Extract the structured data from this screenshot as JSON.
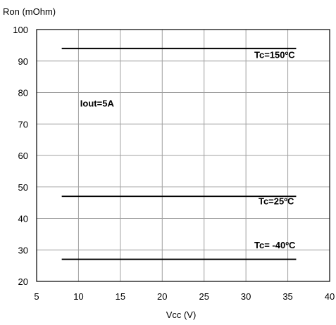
{
  "chart_data": {
    "type": "line",
    "ylabel": "Ron (mOhm)",
    "xlabel": "Vcc (V)",
    "xlim": [
      5,
      40
    ],
    "ylim": [
      20,
      100
    ],
    "x_ticks": [
      5,
      10,
      15,
      20,
      25,
      30,
      35,
      40
    ],
    "y_ticks": [
      20,
      30,
      40,
      50,
      60,
      70,
      80,
      90,
      100
    ],
    "grid": true,
    "series": [
      {
        "name": "Tc=150ºC",
        "x": [
          8,
          36
        ],
        "y": [
          94,
          94
        ]
      },
      {
        "name": "Tc=25ºC",
        "x": [
          8,
          36
        ],
        "y": [
          47,
          47
        ]
      },
      {
        "name": "Tc= -40ºC",
        "x": [
          8,
          36
        ],
        "y": [
          27,
          27
        ]
      }
    ],
    "annotations": [
      {
        "text": "Iout=5A",
        "x": 10.2,
        "y": 75.5
      },
      {
        "text": "Tc=150ºC",
        "x": 31,
        "y": 91
      },
      {
        "text": "Tc=25ºC",
        "x": 31.5,
        "y": 44.5
      },
      {
        "text": "Tc= -40ºC",
        "x": 31,
        "y": 30.5
      }
    ],
    "line_color": "#000000",
    "grid_color": "#a0a0a0"
  }
}
